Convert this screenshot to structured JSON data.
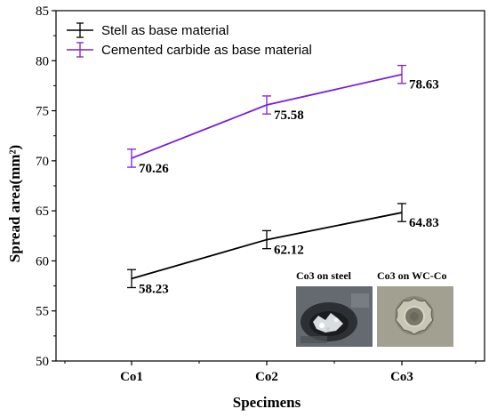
{
  "chart_data": {
    "type": "line",
    "categories": [
      "Co1",
      "Co2",
      "Co3"
    ],
    "xlabel": "Specimens",
    "ylabel": "Spread area(mm²)",
    "ylim": [
      50,
      85
    ],
    "yticks": [
      50,
      55,
      60,
      65,
      70,
      75,
      80,
      85
    ],
    "grid": false,
    "legend_position": "top-left",
    "series": [
      {
        "name": "Stell as base material",
        "color": "#000000",
        "values": [
          58.23,
          62.12,
          64.83
        ],
        "errors": [
          0.9,
          0.9,
          0.9
        ],
        "labels": [
          "58.23",
          "62.12",
          "64.83"
        ]
      },
      {
        "name": "Cemented carbide as base material",
        "color": "#7B1FD6",
        "values": [
          70.26,
          75.58,
          78.63
        ],
        "errors": [
          0.9,
          0.9,
          0.9
        ],
        "labels": [
          "70.26",
          "75.58",
          "78.63"
        ]
      }
    ]
  },
  "insets": [
    {
      "caption": "Co3 on steel",
      "icon": "steel-sample-photo"
    },
    {
      "caption": "Co3 on WC-Co",
      "icon": "wc-co-sample-photo"
    }
  ]
}
